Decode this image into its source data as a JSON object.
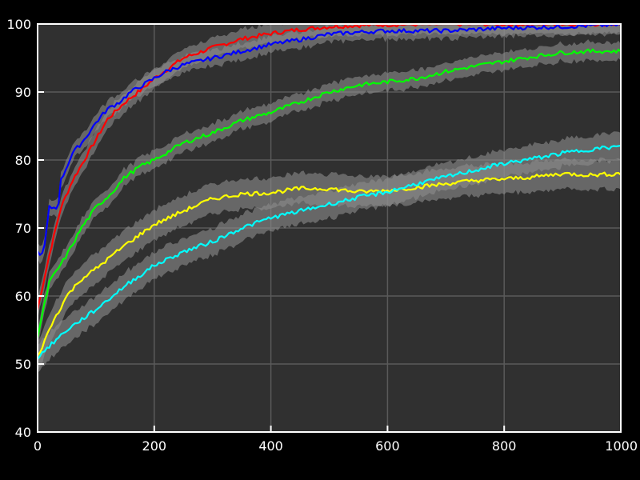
{
  "chart_data": {
    "type": "line",
    "title": "",
    "xlabel": "",
    "ylabel": "",
    "xlim": [
      0,
      1000
    ],
    "ylim": [
      40,
      100
    ],
    "grid": true,
    "x_ticks": [
      0,
      200,
      400,
      600,
      800,
      1000
    ],
    "y_ticks": [
      40,
      50,
      60,
      70,
      80,
      90,
      100
    ],
    "x_tick_labels": [
      "0",
      "200",
      "400",
      "600",
      "800",
      "1000"
    ],
    "y_tick_labels": [
      "40",
      "50",
      "60",
      "70",
      "80",
      "90",
      "100"
    ],
    "series": [
      {
        "color": "#ff0000",
        "band_width": 1.2,
        "x": [
          0,
          20,
          40,
          60,
          80,
          100,
          120,
          150,
          180,
          200,
          250,
          300,
          350,
          400,
          450,
          500,
          550,
          600,
          700,
          800,
          900,
          1000
        ],
        "y": [
          58,
          66,
          73,
          77,
          80,
          83,
          86,
          88.5,
          90.5,
          92,
          95,
          96.5,
          97.8,
          98.6,
          99.2,
          99.6,
          99.8,
          99.9,
          100,
          100,
          100,
          100
        ]
      },
      {
        "color": "#0000ff",
        "band_width": 1.0,
        "x": [
          0,
          10,
          20,
          35,
          40,
          60,
          80,
          100,
          120,
          140,
          160,
          180,
          200,
          220,
          250,
          300,
          350,
          400,
          450,
          500,
          550,
          600,
          700,
          800,
          900,
          1000
        ],
        "y": [
          66.5,
          66,
          73,
          73,
          77,
          81,
          83,
          85.5,
          87.5,
          88.5,
          90,
          91,
          92,
          93,
          94,
          95,
          96,
          97,
          97.7,
          98.5,
          98.8,
          99,
          99,
          99.4,
          99.6,
          99.9
        ]
      },
      {
        "color": "#00ff00",
        "band_width": 1.1,
        "x": [
          0,
          20,
          50,
          75,
          100,
          125,
          150,
          175,
          200,
          250,
          300,
          350,
          400,
          450,
          500,
          550,
          600,
          650,
          700,
          750,
          800,
          850,
          900,
          950,
          1000
        ],
        "y": [
          54,
          62,
          66,
          70,
          73,
          75,
          77.5,
          79,
          80,
          82.5,
          84,
          85.8,
          87,
          88.5,
          90,
          91,
          91.5,
          92,
          93,
          93.8,
          94.5,
          95.2,
          95.8,
          96,
          96
        ]
      },
      {
        "color": "#ffff00",
        "band_width": 2.0,
        "x": [
          0,
          25,
          50,
          75,
          100,
          150,
          200,
          250,
          300,
          350,
          400,
          450,
          500,
          550,
          600,
          650,
          700,
          750,
          800,
          850,
          900,
          950,
          1000
        ],
        "y": [
          51,
          56,
          60,
          62.5,
          64,
          67.5,
          70.5,
          72.5,
          74.3,
          75,
          75.2,
          75.8,
          75.8,
          75.3,
          75.5,
          76,
          76.5,
          77,
          77.2,
          77.5,
          78,
          77.8,
          78
        ]
      },
      {
        "color": "#00ffff",
        "band_width": 1.8,
        "x": [
          0,
          25,
          50,
          75,
          100,
          150,
          200,
          250,
          300,
          350,
          400,
          450,
          500,
          550,
          600,
          650,
          700,
          750,
          800,
          850,
          900,
          950,
          1000
        ],
        "y": [
          51,
          53,
          55,
          56.5,
          58,
          61.5,
          64.5,
          66.5,
          68,
          70,
          71.5,
          72.5,
          73.5,
          74.5,
          75.3,
          76.5,
          77.5,
          78.5,
          79.5,
          80.2,
          81,
          81.6,
          82
        ]
      }
    ]
  }
}
